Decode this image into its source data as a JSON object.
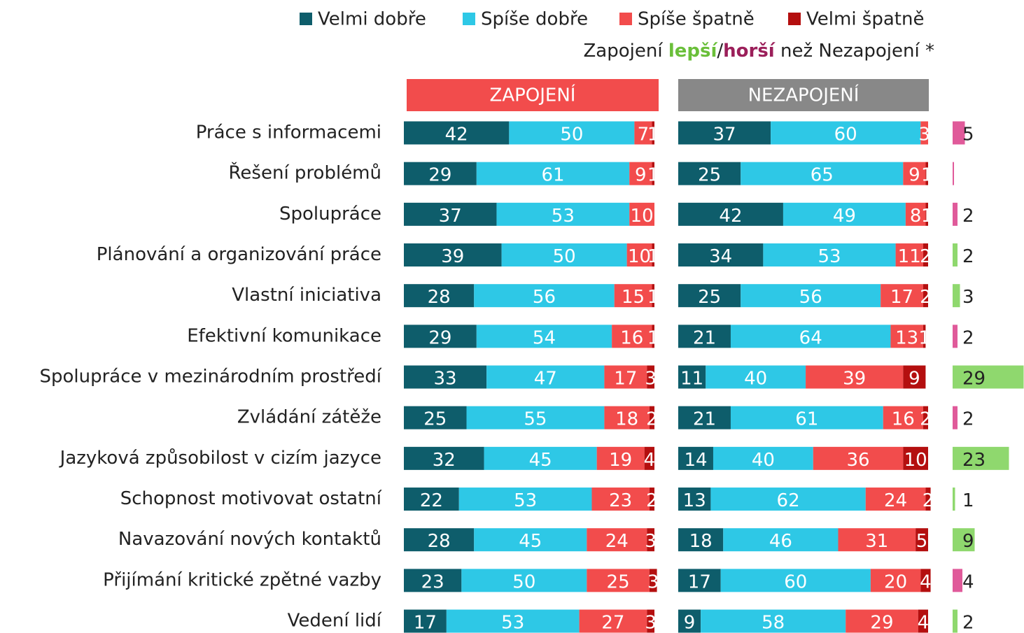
{
  "chart_data": {
    "type": "stacked_bar",
    "note": [
      {
        "text": "Zapojení ",
        "color": "#222222"
      },
      {
        "text": "lepší",
        "color": "#6abf3a"
      },
      {
        "text": "/",
        "color": "#222222"
      },
      {
        "text": "horší",
        "color": "#9b1f5a"
      },
      {
        "text": " než Nezapojení *",
        "color": "#222222"
      }
    ],
    "categories": [
      "Práce s informacemi",
      "Řešení problémů",
      "Spolupráce",
      "Plánování a organizování práce",
      "Vlastní iniciativa",
      "Efektivní komunikace",
      "Spolupráce v mezinárodním prostředí",
      "Zvládání zátěže",
      "Jazyková způsobilost v cizím jazyce",
      "Schopnost motivovat ostatní",
      "Navazování nových kontaktů",
      "Přijímání kritické zpětné vazby",
      "Vedení lidí"
    ],
    "series": [
      {
        "name": "Velmi dobře",
        "color": "#0e5d6b"
      },
      {
        "name": "Spíše dobře",
        "color": "#2ec8e6"
      },
      {
        "name": "Spíše špatně",
        "color": "#f24c4c"
      },
      {
        "name": "Velmi špatně",
        "color": "#b40f0f"
      }
    ],
    "xlim": [
      0,
      100
    ],
    "panels": [
      {
        "title": "ZAPOJENÍ",
        "color": "#f24c4c",
        "values": [
          [
            42,
            50,
            7,
            1
          ],
          [
            29,
            61,
            9,
            1
          ],
          [
            37,
            53,
            10,
            0
          ],
          [
            39,
            50,
            10,
            1
          ],
          [
            28,
            56,
            15,
            1
          ],
          [
            29,
            54,
            16,
            1
          ],
          [
            33,
            47,
            17,
            3
          ],
          [
            25,
            55,
            18,
            2
          ],
          [
            32,
            45,
            19,
            4
          ],
          [
            22,
            53,
            23,
            2
          ],
          [
            28,
            45,
            24,
            3
          ],
          [
            23,
            50,
            25,
            3
          ],
          [
            17,
            53,
            27,
            3
          ]
        ]
      },
      {
        "title": "NEZAPOJENÍ",
        "color": "#888888",
        "values": [
          [
            37,
            60,
            3,
            0
          ],
          [
            25,
            65,
            9,
            1
          ],
          [
            42,
            49,
            8,
            1
          ],
          [
            34,
            53,
            11,
            2
          ],
          [
            25,
            56,
            17,
            2
          ],
          [
            21,
            64,
            13,
            1
          ],
          [
            11,
            40,
            39,
            9
          ],
          [
            21,
            61,
            16,
            2
          ],
          [
            14,
            40,
            36,
            10
          ],
          [
            13,
            62,
            24,
            2
          ],
          [
            18,
            46,
            31,
            5
          ],
          [
            17,
            60,
            20,
            4
          ],
          [
            9,
            58,
            29,
            4
          ]
        ]
      }
    ],
    "difference": {
      "values": [
        5,
        0,
        2,
        2,
        3,
        2,
        29,
        2,
        23,
        1,
        9,
        4,
        2
      ],
      "colors": [
        "#e05a9a",
        "#e05a9a",
        "#e05a9a",
        "#8fd86e",
        "#8fd86e",
        "#e05a9a",
        "#8fd86e",
        "#e05a9a",
        "#8fd86e",
        "#8fd86e",
        "#8fd86e",
        "#e05a9a",
        "#8fd86e"
      ]
    }
  }
}
